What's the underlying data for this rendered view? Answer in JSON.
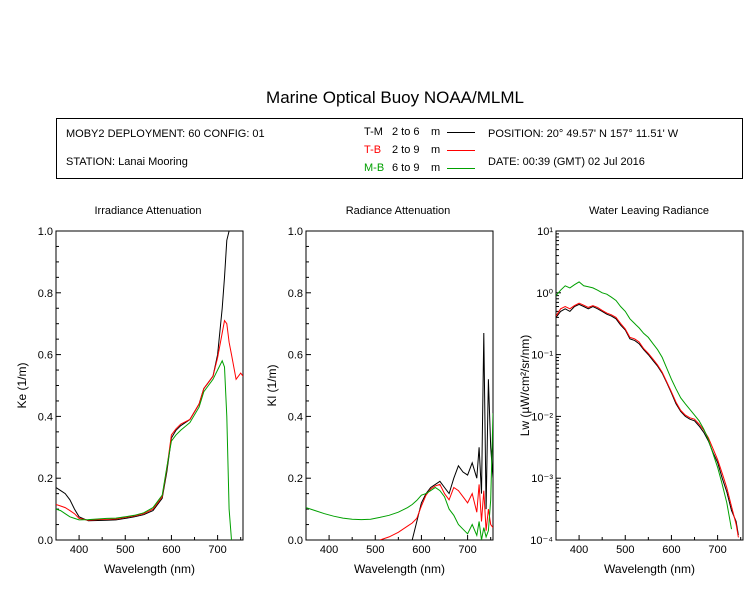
{
  "title": "Marine Optical Buoy NOAA/MLML",
  "info": {
    "deployment": "MOBY2 DEPLOYMENT: 60 CONFIG: 01",
    "station": "STATION: Lanai Mooring",
    "position": "POSITION: 20° 49.57' N   157° 11.51' W",
    "date": "DATE: 00:39 (GMT) 02 Jul 2016"
  },
  "legend": [
    {
      "code": "T-M",
      "range": "2 to 6",
      "unit": "m",
      "color": "#000000"
    },
    {
      "code": "T-B",
      "range": "2 to 9",
      "unit": "m",
      "color": "#ff0000"
    },
    {
      "code": "M-B",
      "range": "6 to 9",
      "unit": "m",
      "color": "#00a000"
    }
  ],
  "chart_data": [
    {
      "type": "line",
      "title": "Irradiance Attenuation",
      "xlabel": "Wavelength (nm)",
      "ylabel": "Ke  (1/m)",
      "xlim": [
        350,
        755
      ],
      "ylim": [
        0,
        1.0
      ],
      "xticks": [
        "400",
        "500",
        "600",
        "700"
      ],
      "yticks": [
        "0.0",
        "0.2",
        "0.4",
        "0.6",
        "0.8",
        "1.0"
      ],
      "x": [
        350,
        360,
        370,
        380,
        390,
        400,
        420,
        440,
        460,
        480,
        500,
        520,
        540,
        560,
        580,
        590,
        600,
        610,
        620,
        640,
        660,
        670,
        680,
        690,
        700,
        710,
        715,
        720,
        725,
        730,
        740,
        750,
        755
      ],
      "series": [
        {
          "name": "T-M",
          "color": "#000000",
          "values": [
            0.17,
            0.16,
            0.15,
            0.13,
            0.1,
            0.075,
            0.062,
            0.063,
            0.064,
            0.065,
            0.07,
            0.075,
            0.082,
            0.095,
            0.135,
            0.22,
            0.33,
            0.355,
            0.37,
            0.39,
            0.44,
            0.49,
            0.51,
            0.53,
            0.6,
            0.75,
            0.85,
            0.97,
            1.0,
            1.0,
            1.0,
            1.0,
            1.0
          ]
        },
        {
          "name": "T-B",
          "color": "#ff0000",
          "values": [
            0.115,
            0.11,
            0.105,
            0.095,
            0.085,
            0.07,
            0.064,
            0.066,
            0.067,
            0.068,
            0.073,
            0.078,
            0.085,
            0.1,
            0.14,
            0.23,
            0.34,
            0.36,
            0.375,
            0.39,
            0.44,
            0.49,
            0.51,
            0.53,
            0.59,
            0.67,
            0.71,
            0.7,
            0.64,
            0.6,
            0.52,
            0.54,
            0.53
          ]
        },
        {
          "name": "M-B",
          "color": "#00a000",
          "values": [
            0.1,
            0.095,
            0.085,
            0.075,
            0.07,
            0.065,
            0.066,
            0.068,
            0.07,
            0.071,
            0.075,
            0.08,
            0.088,
            0.105,
            0.145,
            0.235,
            0.32,
            0.34,
            0.355,
            0.38,
            0.43,
            0.48,
            0.5,
            0.52,
            0.55,
            0.58,
            0.56,
            0.4,
            0.1,
            0.0,
            null,
            null,
            null
          ]
        }
      ]
    },
    {
      "type": "line",
      "title": "Radiance Attenuation",
      "xlabel": "Wavelength (nm)",
      "ylabel": "Kl  (1/m)",
      "xlim": [
        350,
        755
      ],
      "ylim": [
        0,
        1.0
      ],
      "xticks": [
        "400",
        "500",
        "600",
        "700"
      ],
      "yticks": [
        "0.0",
        "0.2",
        "0.4",
        "0.6",
        "0.8",
        "1.0"
      ],
      "x": [
        350,
        370,
        390,
        410,
        430,
        450,
        470,
        490,
        510,
        530,
        550,
        570,
        580,
        590,
        600,
        610,
        620,
        630,
        640,
        650,
        660,
        670,
        680,
        690,
        700,
        710,
        720,
        725,
        730,
        735,
        740,
        745,
        750,
        755
      ],
      "series": [
        {
          "name": "T-M",
          "color": "#000000",
          "values": [
            null,
            null,
            null,
            null,
            null,
            null,
            null,
            null,
            null,
            null,
            null,
            null,
            0.0,
            0.06,
            0.12,
            0.15,
            0.17,
            0.18,
            0.19,
            0.17,
            0.15,
            0.2,
            0.24,
            0.22,
            0.21,
            0.25,
            0.2,
            0.3,
            0.15,
            0.67,
            0.1,
            0.52,
            0.3,
            0.2
          ]
        },
        {
          "name": "T-B",
          "color": "#ff0000",
          "values": [
            null,
            null,
            null,
            null,
            null,
            null,
            null,
            null,
            0.0,
            0.01,
            0.025,
            0.045,
            0.055,
            0.07,
            0.11,
            0.145,
            0.165,
            0.175,
            0.18,
            0.15,
            0.13,
            0.17,
            0.16,
            0.14,
            0.12,
            0.15,
            0.09,
            0.18,
            0.06,
            0.16,
            0.03,
            0.1,
            0.05,
            0.04
          ]
        },
        {
          "name": "M-B",
          "color": "#00a000",
          "values": [
            0.105,
            0.095,
            0.085,
            0.077,
            0.071,
            0.067,
            0.066,
            0.067,
            0.073,
            0.08,
            0.09,
            0.105,
            0.115,
            0.128,
            0.145,
            0.15,
            0.16,
            0.17,
            0.16,
            0.14,
            0.1,
            0.08,
            0.05,
            0.035,
            0.02,
            0.05,
            0.015,
            0.06,
            0.0,
            0.04,
            0.01,
            0.03,
            0.13,
            0.41
          ]
        }
      ]
    },
    {
      "type": "line",
      "title": "Water Leaving Radiance",
      "xlabel": "Wavelength (nm)",
      "ylabel": "Lw  (µW/cm²/sr/nm)",
      "yscale": "log",
      "xlim": [
        350,
        755
      ],
      "ylim": [
        0.0001,
        10
      ],
      "xticks": [
        "400",
        "500",
        "600",
        "700"
      ],
      "yticks": [
        "10⁻⁴",
        "10⁻³",
        "10⁻²",
        "10⁻¹",
        "10⁰",
        "10¹"
      ],
      "x": [
        350,
        360,
        370,
        380,
        390,
        400,
        410,
        420,
        430,
        440,
        450,
        460,
        470,
        480,
        490,
        500,
        510,
        520,
        530,
        540,
        550,
        560,
        570,
        580,
        590,
        600,
        610,
        620,
        630,
        640,
        650,
        660,
        670,
        680,
        690,
        700,
        710,
        720,
        730,
        740,
        745
      ],
      "series": [
        {
          "name": "T-M",
          "color": "#000000",
          "values": [
            0.4,
            0.5,
            0.55,
            0.5,
            0.6,
            0.65,
            0.6,
            0.55,
            0.6,
            0.55,
            0.5,
            0.45,
            0.42,
            0.38,
            0.3,
            0.25,
            0.18,
            0.17,
            0.15,
            0.12,
            0.1,
            0.08,
            0.065,
            0.05,
            0.035,
            0.024,
            0.016,
            0.012,
            0.01,
            0.009,
            0.0085,
            0.007,
            0.0055,
            0.004,
            0.0026,
            0.0018,
            0.001,
            0.0006,
            0.0003,
            0.0002,
            0.00012
          ]
        },
        {
          "name": "T-B",
          "color": "#ff0000",
          "values": [
            0.42,
            0.55,
            0.6,
            0.55,
            0.62,
            0.68,
            0.63,
            0.58,
            0.62,
            0.58,
            0.52,
            0.47,
            0.44,
            0.4,
            0.32,
            0.26,
            0.19,
            0.18,
            0.16,
            0.125,
            0.105,
            0.085,
            0.068,
            0.052,
            0.036,
            0.025,
            0.017,
            0.0125,
            0.0105,
            0.0095,
            0.009,
            0.0075,
            0.006,
            0.0045,
            0.003,
            0.002,
            0.0012,
            0.0007,
            0.00035,
            0.00018,
            0.00011
          ]
        },
        {
          "name": "M-B",
          "color": "#00a000",
          "values": [
            0.9,
            1.1,
            1.3,
            1.2,
            1.35,
            1.5,
            1.3,
            1.25,
            1.2,
            1.1,
            1.0,
            0.95,
            0.85,
            0.75,
            0.6,
            0.5,
            0.38,
            0.32,
            0.27,
            0.22,
            0.19,
            0.15,
            0.12,
            0.09,
            0.06,
            0.04,
            0.028,
            0.02,
            0.016,
            0.013,
            0.0105,
            0.0085,
            0.0062,
            0.0042,
            0.0025,
            0.0015,
            0.0008,
            0.0004,
            0.00015,
            null,
            null
          ]
        }
      ]
    }
  ]
}
